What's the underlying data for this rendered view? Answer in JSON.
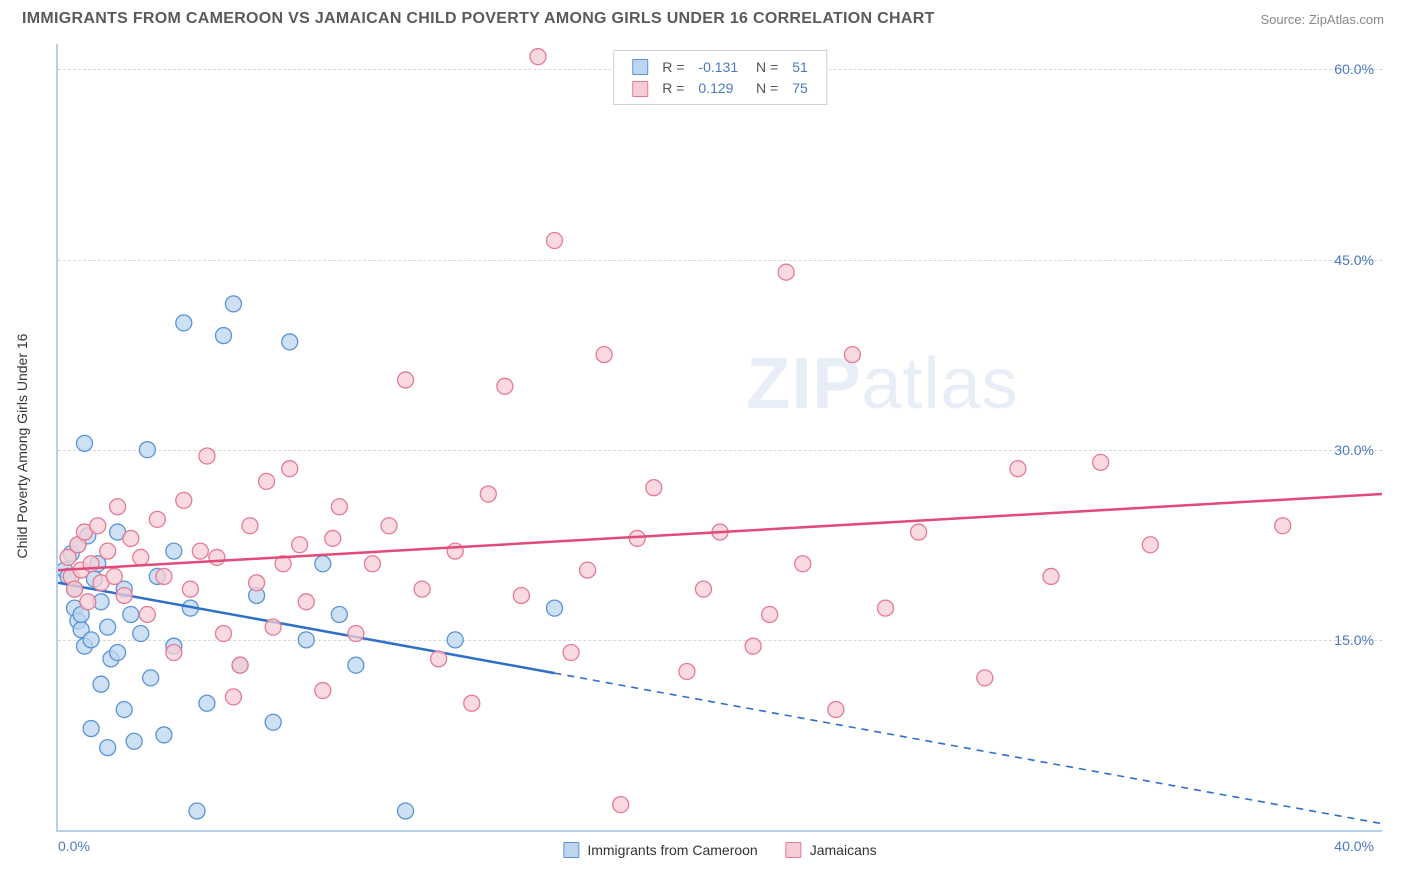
{
  "header": {
    "title": "IMMIGRANTS FROM CAMEROON VS JAMAICAN CHILD POVERTY AMONG GIRLS UNDER 16 CORRELATION CHART",
    "source_label": "Source: ",
    "source_name": "ZipAtlas.com"
  },
  "chart": {
    "ylabel": "Child Poverty Among Girls Under 16",
    "watermark_a": "ZIP",
    "watermark_b": "atlas",
    "xlim": [
      0,
      40
    ],
    "ylim": [
      0,
      62
    ],
    "yticks": [
      {
        "v": 15,
        "label": "15.0%"
      },
      {
        "v": 30,
        "label": "30.0%"
      },
      {
        "v": 45,
        "label": "45.0%"
      },
      {
        "v": 60,
        "label": "60.0%"
      }
    ],
    "xtick_left": "0.0%",
    "xtick_right": "40.0%",
    "grid_y": [
      15,
      30,
      45,
      60
    ],
    "background": "#ffffff",
    "grid_color": "#d8d8d8",
    "axis_color": "#b8cde6",
    "tick_text_color": "#4a79c4",
    "series": [
      {
        "key": "cameroon",
        "name": "Immigrants from Cameroon",
        "R": "-0.131",
        "N": "51",
        "marker_fill": "#bcd6f0",
        "marker_stroke": "#5b94d6",
        "line_color": "#2f6fc9",
        "line_solid_until_x": 15,
        "trend": {
          "x1": 0,
          "y1": 19.5,
          "x2": 40,
          "y2": 0.5
        },
        "points": [
          [
            0.2,
            20.5
          ],
          [
            0.3,
            20.0
          ],
          [
            0.4,
            21.8
          ],
          [
            0.5,
            19.0
          ],
          [
            0.5,
            17.5
          ],
          [
            0.6,
            22.5
          ],
          [
            0.6,
            16.5
          ],
          [
            0.7,
            15.8
          ],
          [
            0.7,
            17.0
          ],
          [
            0.8,
            30.5
          ],
          [
            0.8,
            14.5
          ],
          [
            0.9,
            23.2
          ],
          [
            1.0,
            8.0
          ],
          [
            1.0,
            15.0
          ],
          [
            1.1,
            19.8
          ],
          [
            1.2,
            21.0
          ],
          [
            1.3,
            11.5
          ],
          [
            1.3,
            18.0
          ],
          [
            1.5,
            16.0
          ],
          [
            1.5,
            6.5
          ],
          [
            1.6,
            13.5
          ],
          [
            1.8,
            23.5
          ],
          [
            1.8,
            14.0
          ],
          [
            2.0,
            9.5
          ],
          [
            2.0,
            19.0
          ],
          [
            2.2,
            17.0
          ],
          [
            2.3,
            7.0
          ],
          [
            2.5,
            15.5
          ],
          [
            2.7,
            30.0
          ],
          [
            2.8,
            12.0
          ],
          [
            3.0,
            20.0
          ],
          [
            3.2,
            7.5
          ],
          [
            3.5,
            14.5
          ],
          [
            3.5,
            22.0
          ],
          [
            3.8,
            40.0
          ],
          [
            4.0,
            17.5
          ],
          [
            4.2,
            1.5
          ],
          [
            4.5,
            10.0
          ],
          [
            5.0,
            39.0
          ],
          [
            5.3,
            41.5
          ],
          [
            5.5,
            13.0
          ],
          [
            6.0,
            18.5
          ],
          [
            6.5,
            8.5
          ],
          [
            7.0,
            38.5
          ],
          [
            7.5,
            15.0
          ],
          [
            8.0,
            21.0
          ],
          [
            8.5,
            17.0
          ],
          [
            9.0,
            13.0
          ],
          [
            10.5,
            1.5
          ],
          [
            12.0,
            15.0
          ],
          [
            15.0,
            17.5
          ]
        ]
      },
      {
        "key": "jamaican",
        "name": "Jamaicans",
        "R": "0.129",
        "N": "75",
        "marker_fill": "#f6cdd6",
        "marker_stroke": "#e67a95",
        "line_color": "#e24a77",
        "line_solid_until_x": 40,
        "trend": {
          "x1": 0,
          "y1": 20.5,
          "x2": 40,
          "y2": 26.5
        },
        "points": [
          [
            0.3,
            21.5
          ],
          [
            0.4,
            20.0
          ],
          [
            0.5,
            19.0
          ],
          [
            0.6,
            22.5
          ],
          [
            0.7,
            20.5
          ],
          [
            0.8,
            23.5
          ],
          [
            0.9,
            18.0
          ],
          [
            1.0,
            21.0
          ],
          [
            1.2,
            24.0
          ],
          [
            1.3,
            19.5
          ],
          [
            1.5,
            22.0
          ],
          [
            1.7,
            20.0
          ],
          [
            1.8,
            25.5
          ],
          [
            2.0,
            18.5
          ],
          [
            2.2,
            23.0
          ],
          [
            2.5,
            21.5
          ],
          [
            2.7,
            17.0
          ],
          [
            3.0,
            24.5
          ],
          [
            3.2,
            20.0
          ],
          [
            3.5,
            14.0
          ],
          [
            3.8,
            26.0
          ],
          [
            4.0,
            19.0
          ],
          [
            4.3,
            22.0
          ],
          [
            4.5,
            29.5
          ],
          [
            4.8,
            21.5
          ],
          [
            5.0,
            15.5
          ],
          [
            5.3,
            10.5
          ],
          [
            5.5,
            13.0
          ],
          [
            5.8,
            24.0
          ],
          [
            6.0,
            19.5
          ],
          [
            6.3,
            27.5
          ],
          [
            6.5,
            16.0
          ],
          [
            6.8,
            21.0
          ],
          [
            7.0,
            28.5
          ],
          [
            7.3,
            22.5
          ],
          [
            7.5,
            18.0
          ],
          [
            8.0,
            11.0
          ],
          [
            8.3,
            23.0
          ],
          [
            8.5,
            25.5
          ],
          [
            9.0,
            15.5
          ],
          [
            9.5,
            21.0
          ],
          [
            10.0,
            24.0
          ],
          [
            10.5,
            35.5
          ],
          [
            11.0,
            19.0
          ],
          [
            11.5,
            13.5
          ],
          [
            12.0,
            22.0
          ],
          [
            12.5,
            10.0
          ],
          [
            13.0,
            26.5
          ],
          [
            13.5,
            35.0
          ],
          [
            14.0,
            18.5
          ],
          [
            14.5,
            61.0
          ],
          [
            15.0,
            46.5
          ],
          [
            15.5,
            14.0
          ],
          [
            16.0,
            20.5
          ],
          [
            16.5,
            37.5
          ],
          [
            17.0,
            2.0
          ],
          [
            17.5,
            23.0
          ],
          [
            18.0,
            27.0
          ],
          [
            19.0,
            12.5
          ],
          [
            19.5,
            19.0
          ],
          [
            20.0,
            23.5
          ],
          [
            21.0,
            14.5
          ],
          [
            21.5,
            17.0
          ],
          [
            22.0,
            44.0
          ],
          [
            22.5,
            21.0
          ],
          [
            23.5,
            9.5
          ],
          [
            24.0,
            37.5
          ],
          [
            25.0,
            17.5
          ],
          [
            26.0,
            23.5
          ],
          [
            28.0,
            12.0
          ],
          [
            29.0,
            28.5
          ],
          [
            30.0,
            20.0
          ],
          [
            31.5,
            29.0
          ],
          [
            33.0,
            22.5
          ],
          [
            37.0,
            24.0
          ]
        ]
      }
    ],
    "bottom_legend": [
      {
        "series": "cameroon"
      },
      {
        "series": "jamaican"
      }
    ],
    "marker_radius": 8
  }
}
